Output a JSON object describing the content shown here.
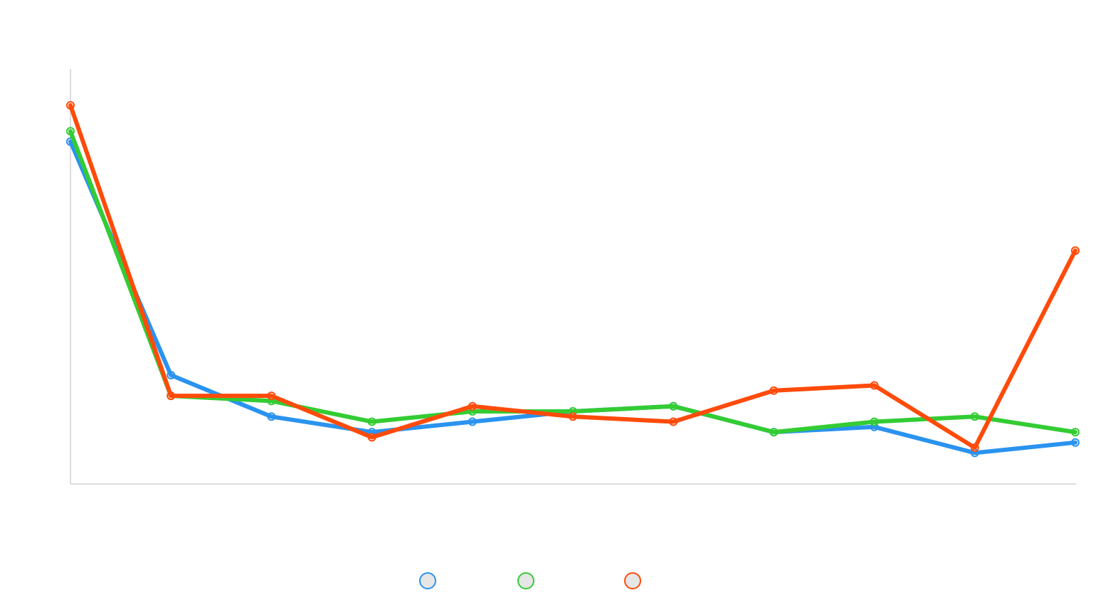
{
  "chart_data": {
    "type": "line",
    "title": "",
    "xlabel": "",
    "ylabel": "",
    "grid": false,
    "legend_position": "bottom",
    "x": [
      1,
      2,
      3,
      4,
      5,
      6,
      7,
      8,
      9,
      10,
      11
    ],
    "ylim": [
      0,
      800
    ],
    "series": [
      {
        "color": "#2a93ef",
        "values": [
          660,
          210,
          130,
          100,
          120,
          140,
          150,
          100,
          110,
          60,
          80
        ]
      },
      {
        "color": "#33cc33",
        "values": [
          680,
          170,
          160,
          120,
          140,
          140,
          150,
          100,
          120,
          130,
          100
        ]
      },
      {
        "color": "#ff4b0a",
        "values": [
          730,
          170,
          170,
          90,
          150,
          130,
          120,
          180,
          190,
          70,
          450
        ]
      }
    ]
  }
}
